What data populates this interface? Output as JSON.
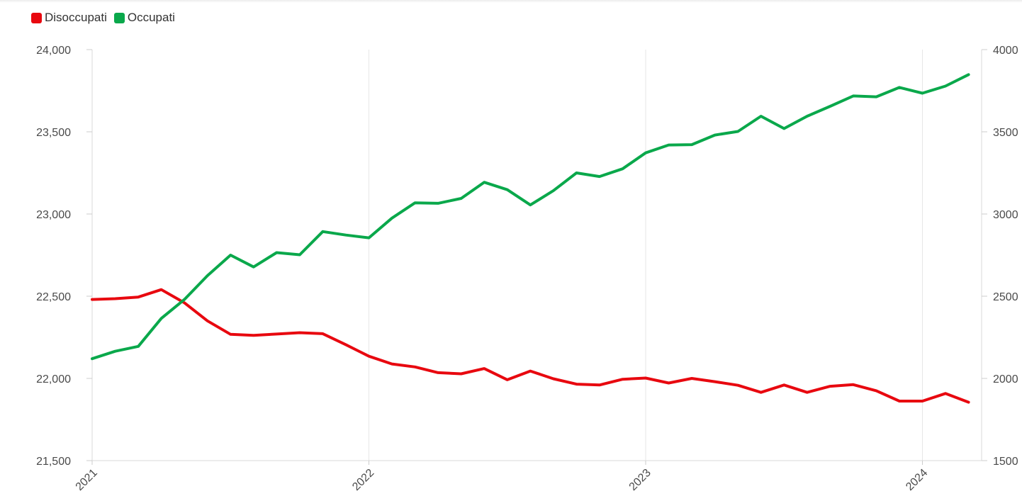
{
  "chart_data": {
    "type": "line",
    "legend": [
      {
        "name": "Disoccupati",
        "color": "#e8080f"
      },
      {
        "name": "Occupati",
        "color": "#0aa84b"
      }
    ],
    "legend_position": "top-left",
    "grid": "vertical",
    "x_ticks": [
      "2021",
      "2022",
      "2023",
      "2024"
    ],
    "y_left": {
      "ticks": [
        "24,000",
        "23,500",
        "23,000",
        "22,500",
        "22,000",
        "21,500"
      ],
      "range": [
        21500,
        24000
      ]
    },
    "y_right": {
      "ticks": [
        "4000",
        "3500",
        "3000",
        "2500",
        "2000",
        "1500"
      ],
      "range": [
        1500,
        4000
      ]
    },
    "dates": [
      "2021-01",
      "2021-02",
      "2021-03",
      "2021-04",
      "2021-05",
      "2021-06",
      "2021-07",
      "2021-08",
      "2021-09",
      "2021-10",
      "2021-11",
      "2021-12",
      "2022-01",
      "2022-02",
      "2022-03",
      "2022-04",
      "2022-05",
      "2022-06",
      "2022-07",
      "2022-08",
      "2022-09",
      "2022-10",
      "2022-11",
      "2022-12",
      "2023-01",
      "2023-02",
      "2023-03",
      "2023-04",
      "2023-05",
      "2023-06",
      "2023-07",
      "2023-08",
      "2023-09",
      "2023-10",
      "2023-11",
      "2023-12",
      "2024-01",
      "2024-02",
      "2024-03"
    ],
    "series": [
      {
        "name": "Disoccupati",
        "axis": "right",
        "color": "#e8080f",
        "values": [
          2480,
          2485,
          2495,
          2540,
          2460,
          2350,
          2268,
          2262,
          2270,
          2278,
          2272,
          2205,
          2135,
          2088,
          2070,
          2035,
          2028,
          2060,
          1992,
          2045,
          1998,
          1965,
          1960,
          1995,
          2002,
          1972,
          2000,
          1980,
          1958,
          1915,
          1960,
          1915,
          1952,
          1962,
          1925,
          1862,
          1862,
          1908,
          1855
        ]
      },
      {
        "name": "Occupati",
        "axis": "left",
        "color": "#0aa84b",
        "values": [
          22120,
          22165,
          22195,
          22365,
          22480,
          22625,
          22750,
          22678,
          22765,
          22752,
          22893,
          22872,
          22855,
          22975,
          23068,
          23065,
          23095,
          23193,
          23148,
          23055,
          23142,
          23250,
          23228,
          23275,
          23372,
          23420,
          23422,
          23480,
          23502,
          23595,
          23520,
          23595,
          23655,
          23718,
          23713,
          23770,
          23735,
          23778,
          23848
        ]
      }
    ]
  }
}
